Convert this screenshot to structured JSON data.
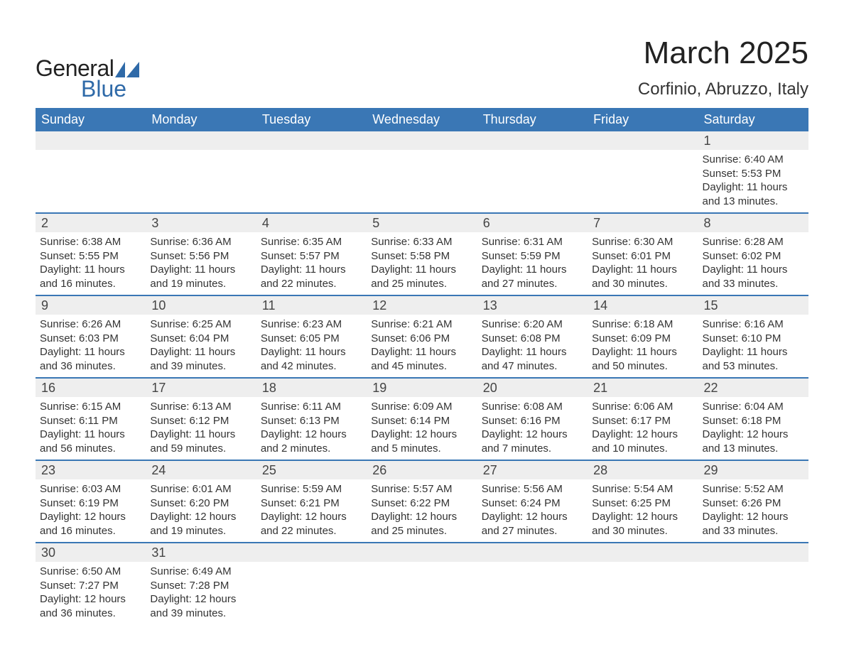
{
  "brand": {
    "word1": "General",
    "word2": "Blue",
    "shape_color": "#2f6aa8"
  },
  "title": "March 2025",
  "location": "Corfinio, Abruzzo, Italy",
  "calendar": {
    "header_bg": "#3a77b5",
    "header_fg": "#ffffff",
    "daybar_bg": "#eeeeee",
    "divider_color": "#3a77b5",
    "weekdays": [
      "Sunday",
      "Monday",
      "Tuesday",
      "Wednesday",
      "Thursday",
      "Friday",
      "Saturday"
    ],
    "weeks": [
      [
        {
          "n": "",
          "sunrise": "",
          "sunset": "",
          "daylight": ""
        },
        {
          "n": "",
          "sunrise": "",
          "sunset": "",
          "daylight": ""
        },
        {
          "n": "",
          "sunrise": "",
          "sunset": "",
          "daylight": ""
        },
        {
          "n": "",
          "sunrise": "",
          "sunset": "",
          "daylight": ""
        },
        {
          "n": "",
          "sunrise": "",
          "sunset": "",
          "daylight": ""
        },
        {
          "n": "",
          "sunrise": "",
          "sunset": "",
          "daylight": ""
        },
        {
          "n": "1",
          "sunrise": "Sunrise: 6:40 AM",
          "sunset": "Sunset: 5:53 PM",
          "daylight": "Daylight: 11 hours and 13 minutes."
        }
      ],
      [
        {
          "n": "2",
          "sunrise": "Sunrise: 6:38 AM",
          "sunset": "Sunset: 5:55 PM",
          "daylight": "Daylight: 11 hours and 16 minutes."
        },
        {
          "n": "3",
          "sunrise": "Sunrise: 6:36 AM",
          "sunset": "Sunset: 5:56 PM",
          "daylight": "Daylight: 11 hours and 19 minutes."
        },
        {
          "n": "4",
          "sunrise": "Sunrise: 6:35 AM",
          "sunset": "Sunset: 5:57 PM",
          "daylight": "Daylight: 11 hours and 22 minutes."
        },
        {
          "n": "5",
          "sunrise": "Sunrise: 6:33 AM",
          "sunset": "Sunset: 5:58 PM",
          "daylight": "Daylight: 11 hours and 25 minutes."
        },
        {
          "n": "6",
          "sunrise": "Sunrise: 6:31 AM",
          "sunset": "Sunset: 5:59 PM",
          "daylight": "Daylight: 11 hours and 27 minutes."
        },
        {
          "n": "7",
          "sunrise": "Sunrise: 6:30 AM",
          "sunset": "Sunset: 6:01 PM",
          "daylight": "Daylight: 11 hours and 30 minutes."
        },
        {
          "n": "8",
          "sunrise": "Sunrise: 6:28 AM",
          "sunset": "Sunset: 6:02 PM",
          "daylight": "Daylight: 11 hours and 33 minutes."
        }
      ],
      [
        {
          "n": "9",
          "sunrise": "Sunrise: 6:26 AM",
          "sunset": "Sunset: 6:03 PM",
          "daylight": "Daylight: 11 hours and 36 minutes."
        },
        {
          "n": "10",
          "sunrise": "Sunrise: 6:25 AM",
          "sunset": "Sunset: 6:04 PM",
          "daylight": "Daylight: 11 hours and 39 minutes."
        },
        {
          "n": "11",
          "sunrise": "Sunrise: 6:23 AM",
          "sunset": "Sunset: 6:05 PM",
          "daylight": "Daylight: 11 hours and 42 minutes."
        },
        {
          "n": "12",
          "sunrise": "Sunrise: 6:21 AM",
          "sunset": "Sunset: 6:06 PM",
          "daylight": "Daylight: 11 hours and 45 minutes."
        },
        {
          "n": "13",
          "sunrise": "Sunrise: 6:20 AM",
          "sunset": "Sunset: 6:08 PM",
          "daylight": "Daylight: 11 hours and 47 minutes."
        },
        {
          "n": "14",
          "sunrise": "Sunrise: 6:18 AM",
          "sunset": "Sunset: 6:09 PM",
          "daylight": "Daylight: 11 hours and 50 minutes."
        },
        {
          "n": "15",
          "sunrise": "Sunrise: 6:16 AM",
          "sunset": "Sunset: 6:10 PM",
          "daylight": "Daylight: 11 hours and 53 minutes."
        }
      ],
      [
        {
          "n": "16",
          "sunrise": "Sunrise: 6:15 AM",
          "sunset": "Sunset: 6:11 PM",
          "daylight": "Daylight: 11 hours and 56 minutes."
        },
        {
          "n": "17",
          "sunrise": "Sunrise: 6:13 AM",
          "sunset": "Sunset: 6:12 PM",
          "daylight": "Daylight: 11 hours and 59 minutes."
        },
        {
          "n": "18",
          "sunrise": "Sunrise: 6:11 AM",
          "sunset": "Sunset: 6:13 PM",
          "daylight": "Daylight: 12 hours and 2 minutes."
        },
        {
          "n": "19",
          "sunrise": "Sunrise: 6:09 AM",
          "sunset": "Sunset: 6:14 PM",
          "daylight": "Daylight: 12 hours and 5 minutes."
        },
        {
          "n": "20",
          "sunrise": "Sunrise: 6:08 AM",
          "sunset": "Sunset: 6:16 PM",
          "daylight": "Daylight: 12 hours and 7 minutes."
        },
        {
          "n": "21",
          "sunrise": "Sunrise: 6:06 AM",
          "sunset": "Sunset: 6:17 PM",
          "daylight": "Daylight: 12 hours and 10 minutes."
        },
        {
          "n": "22",
          "sunrise": "Sunrise: 6:04 AM",
          "sunset": "Sunset: 6:18 PM",
          "daylight": "Daylight: 12 hours and 13 minutes."
        }
      ],
      [
        {
          "n": "23",
          "sunrise": "Sunrise: 6:03 AM",
          "sunset": "Sunset: 6:19 PM",
          "daylight": "Daylight: 12 hours and 16 minutes."
        },
        {
          "n": "24",
          "sunrise": "Sunrise: 6:01 AM",
          "sunset": "Sunset: 6:20 PM",
          "daylight": "Daylight: 12 hours and 19 minutes."
        },
        {
          "n": "25",
          "sunrise": "Sunrise: 5:59 AM",
          "sunset": "Sunset: 6:21 PM",
          "daylight": "Daylight: 12 hours and 22 minutes."
        },
        {
          "n": "26",
          "sunrise": "Sunrise: 5:57 AM",
          "sunset": "Sunset: 6:22 PM",
          "daylight": "Daylight: 12 hours and 25 minutes."
        },
        {
          "n": "27",
          "sunrise": "Sunrise: 5:56 AM",
          "sunset": "Sunset: 6:24 PM",
          "daylight": "Daylight: 12 hours and 27 minutes."
        },
        {
          "n": "28",
          "sunrise": "Sunrise: 5:54 AM",
          "sunset": "Sunset: 6:25 PM",
          "daylight": "Daylight: 12 hours and 30 minutes."
        },
        {
          "n": "29",
          "sunrise": "Sunrise: 5:52 AM",
          "sunset": "Sunset: 6:26 PM",
          "daylight": "Daylight: 12 hours and 33 minutes."
        }
      ],
      [
        {
          "n": "30",
          "sunrise": "Sunrise: 6:50 AM",
          "sunset": "Sunset: 7:27 PM",
          "daylight": "Daylight: 12 hours and 36 minutes."
        },
        {
          "n": "31",
          "sunrise": "Sunrise: 6:49 AM",
          "sunset": "Sunset: 7:28 PM",
          "daylight": "Daylight: 12 hours and 39 minutes."
        },
        {
          "n": "",
          "sunrise": "",
          "sunset": "",
          "daylight": ""
        },
        {
          "n": "",
          "sunrise": "",
          "sunset": "",
          "daylight": ""
        },
        {
          "n": "",
          "sunrise": "",
          "sunset": "",
          "daylight": ""
        },
        {
          "n": "",
          "sunrise": "",
          "sunset": "",
          "daylight": ""
        },
        {
          "n": "",
          "sunrise": "",
          "sunset": "",
          "daylight": ""
        }
      ]
    ]
  }
}
